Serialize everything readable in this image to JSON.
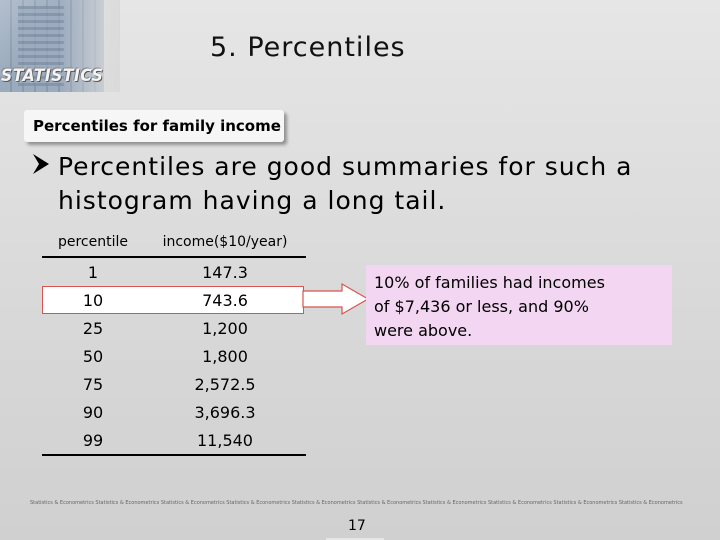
{
  "header": {
    "logo_text": "STATISTICS",
    "title": "5. Percentiles"
  },
  "subtitle": "Percentiles for family income",
  "bullet": {
    "line1": "Percentiles are good summaries for such a",
    "line2": "histogram having a long tail."
  },
  "table": {
    "headers": [
      "percentile",
      "income($10/year)"
    ],
    "rows": [
      [
        "1",
        "147.3"
      ],
      [
        "10",
        "743.6"
      ],
      [
        "25",
        "1,200"
      ],
      [
        "50",
        "1,800"
      ],
      [
        "75",
        "2,572.5"
      ],
      [
        "90",
        "3,696.3"
      ],
      [
        "99",
        "11,540"
      ]
    ],
    "highlight_color": "#d9534f"
  },
  "callout": {
    "line1": "10% of families had incomes",
    "line2": "of $7,436 or less, and 90%",
    "line3": "were above.",
    "background": "#f3d6f1"
  },
  "footer": {
    "strip_text": "Statistics & Econometrics Statistics & Econometrics Statistics & Econometrics Statistics & Econometrics Statistics & Econometrics Statistics & Econometrics Statistics & Econometrics Statistics & Econometrics Statistics & Econometrics Statistics & Econometrics",
    "page_number": "17"
  }
}
